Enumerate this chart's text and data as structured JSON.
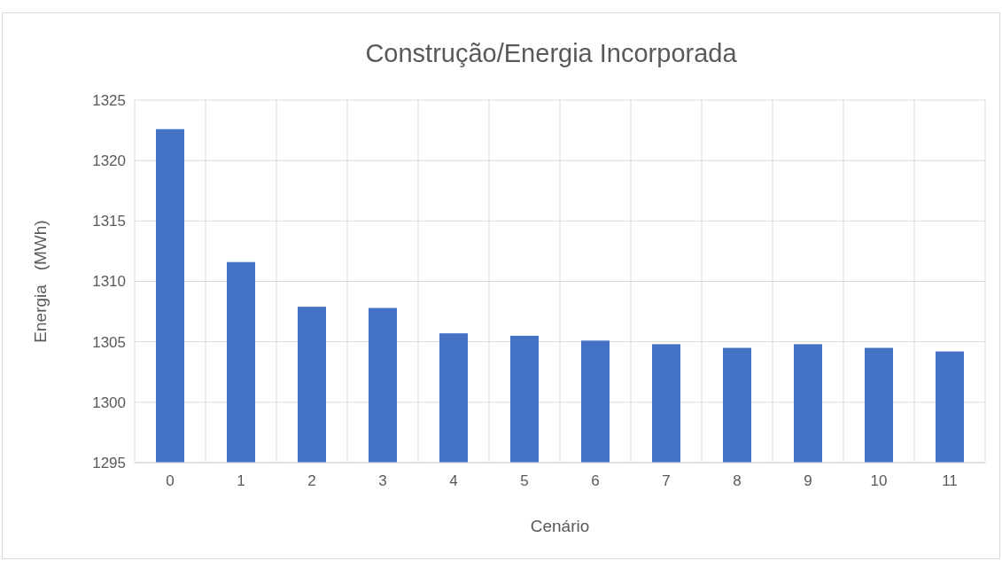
{
  "chart_data": {
    "type": "bar",
    "title": "Construção/Energia Incorporada",
    "xlabel": "Cenário",
    "ylabel": "Energia   (MWh)",
    "categories": [
      "0",
      "1",
      "2",
      "3",
      "4",
      "5",
      "6",
      "7",
      "8",
      "9",
      "10",
      "11"
    ],
    "values": [
      1322.6,
      1311.6,
      1307.9,
      1307.8,
      1305.7,
      1305.5,
      1305.1,
      1304.8,
      1304.5,
      1304.8,
      1304.5,
      1304.2
    ],
    "color": "#4472c4",
    "ylim": [
      1295,
      1325
    ],
    "yticks": [
      1295,
      1300,
      1305,
      1310,
      1315,
      1320,
      1325
    ],
    "grid": true
  }
}
